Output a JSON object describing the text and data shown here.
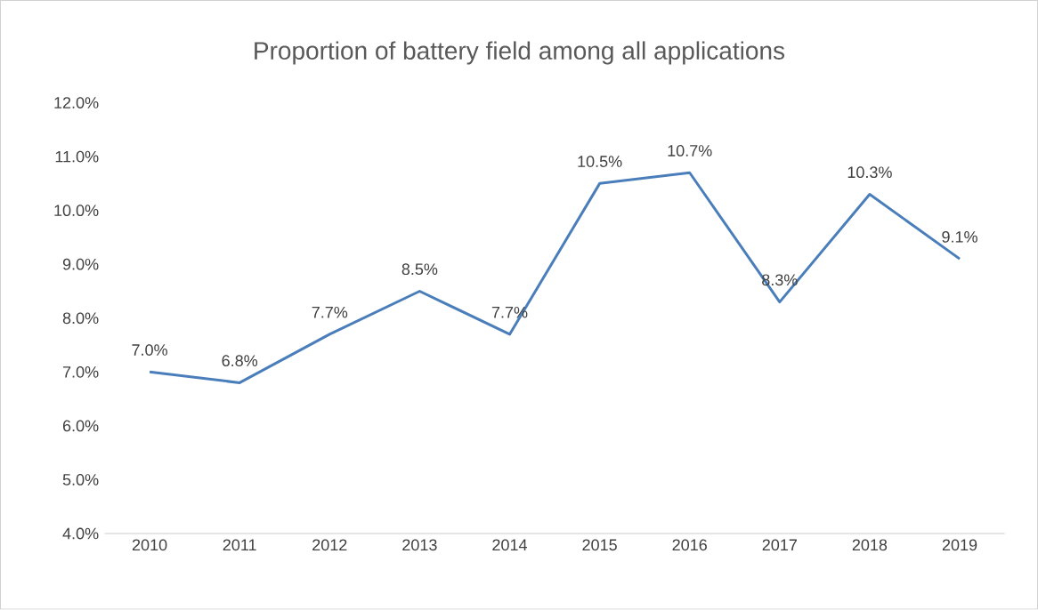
{
  "chart_data": {
    "type": "line",
    "title": "Proportion of battery field among all applications",
    "categories": [
      "2010",
      "2011",
      "2012",
      "2013",
      "2014",
      "2015",
      "2016",
      "2017",
      "2018",
      "2019"
    ],
    "values": [
      7.0,
      6.8,
      7.7,
      8.5,
      7.7,
      10.5,
      10.7,
      8.3,
      10.3,
      9.1
    ],
    "value_labels": [
      "7.0%",
      "6.8%",
      "7.7%",
      "8.5%",
      "7.7%",
      "10.5%",
      "10.7%",
      "8.3%",
      "10.3%",
      "9.1%"
    ],
    "color": "#4a7ebb",
    "marker": "none",
    "line_style": "solid",
    "ylim": [
      4.0,
      12.0
    ],
    "yticks": [
      {
        "value": 4.0,
        "label": "4.0%"
      },
      {
        "value": 5.0,
        "label": "5.0%"
      },
      {
        "value": 6.0,
        "label": "6.0%"
      },
      {
        "value": 7.0,
        "label": "7.0%"
      },
      {
        "value": 8.0,
        "label": "8.0%"
      },
      {
        "value": 9.0,
        "label": "9.0%"
      },
      {
        "value": 10.0,
        "label": "10.0%"
      },
      {
        "value": 11.0,
        "label": "11.0%"
      },
      {
        "value": 12.0,
        "label": "12.0%"
      }
    ],
    "grid": false
  }
}
